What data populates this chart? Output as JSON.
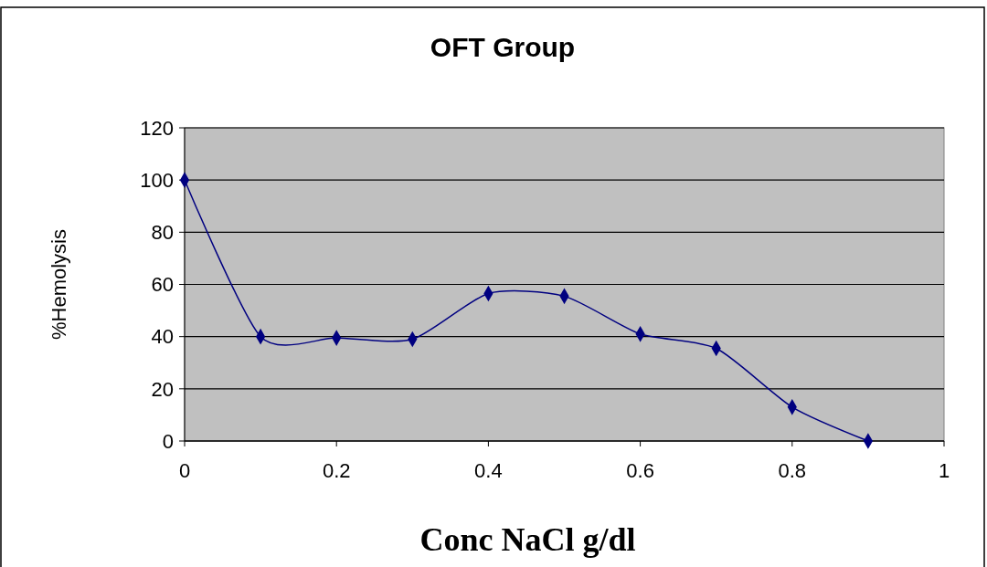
{
  "chart_data": {
    "type": "line",
    "title": "OFT Group",
    "xlabel": "Conc NaCl g/dl",
    "ylabel": "%Hemolysis",
    "x": [
      0,
      0.1,
      0.2,
      0.3,
      0.4,
      0.5,
      0.6,
      0.7,
      0.8,
      0.9
    ],
    "series": [
      {
        "color": "#000080",
        "values": [
          100,
          40,
          39.5,
          39,
          56.5,
          55.5,
          41,
          35.5,
          13,
          0
        ]
      }
    ],
    "xlim": [
      0,
      1
    ],
    "xticks": [
      0,
      0.2,
      0.4,
      0.6,
      0.8,
      1
    ],
    "ylim": [
      0,
      120
    ],
    "yticks": [
      0,
      20,
      40,
      60,
      80,
      100,
      120
    ],
    "grid": "y",
    "marker": "diamond",
    "line_style": "solid"
  }
}
